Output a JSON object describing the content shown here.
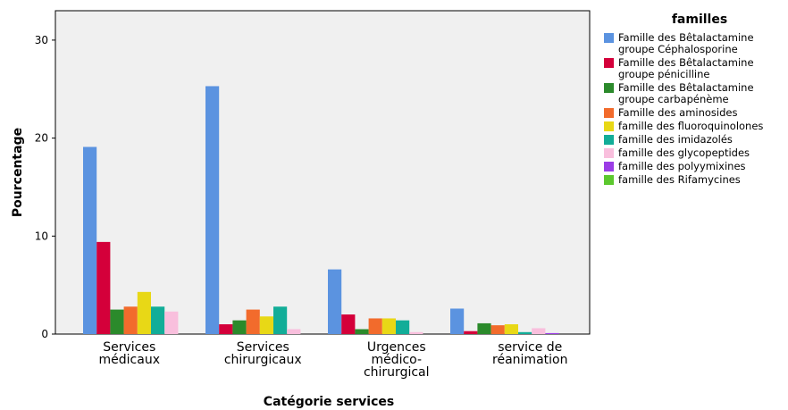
{
  "chart_data": {
    "type": "bar",
    "title": "",
    "xlabel": "Catégorie services",
    "ylabel": "Pourcentage",
    "ylim": [
      0,
      33
    ],
    "yticks": [
      0,
      10,
      20,
      30
    ],
    "grid": false,
    "legend_position": "right",
    "legend_title": "familles",
    "categories": [
      [
        "Services",
        "médicaux"
      ],
      [
        "Services",
        "chirurgicaux"
      ],
      [
        "Urgences",
        "médico-",
        "chirurgical"
      ],
      [
        "service de",
        "réanimation"
      ]
    ],
    "series": [
      {
        "name": "Famille des Bêtalactamine groupe Céphalosporine",
        "color": "#5b93e0",
        "values": [
          19.1,
          25.3,
          6.6,
          2.6
        ]
      },
      {
        "name": "Famille des Bêtalactamine groupe pénicilline",
        "color": "#d4003a",
        "values": [
          9.4,
          1.0,
          2.0,
          0.3
        ]
      },
      {
        "name": "Famille des Bêtalactamine groupe carbapénème",
        "color": "#2b8a2b",
        "values": [
          2.5,
          1.4,
          0.5,
          1.1
        ]
      },
      {
        "name": "Famille des aminosides",
        "color": "#f26b2c",
        "values": [
          2.8,
          2.5,
          1.6,
          0.9
        ]
      },
      {
        "name": "famille des fluoroquinolones",
        "color": "#e8d816",
        "values": [
          4.3,
          1.8,
          1.6,
          1.0
        ]
      },
      {
        "name": "famille des imidazolés",
        "color": "#12ad98",
        "values": [
          2.8,
          2.8,
          1.4,
          0.2
        ]
      },
      {
        "name": "famille des glycopeptides",
        "color": "#f9bfdd",
        "values": [
          2.3,
          0.5,
          0.2,
          0.6
        ]
      },
      {
        "name": "famille des polyymixines",
        "color": "#9b3ce6",
        "values": [
          0.0,
          0.0,
          0.0,
          0.1
        ]
      },
      {
        "name": "famille des Rifamycines",
        "color": "#5cc82e",
        "values": [
          0.0,
          0.0,
          0.0,
          0.0
        ]
      }
    ]
  },
  "legend": {
    "items": [
      [
        "Famille des Bêtalactamine",
        "groupe Céphalosporine"
      ],
      [
        "Famille des Bêtalactamine",
        "groupe pénicilline"
      ],
      [
        "Famille des Bêtalactamine",
        "groupe carbapénème"
      ],
      [
        "Famille des aminosides"
      ],
      [
        "famille des fluoroquinolones"
      ],
      [
        "famille des imidazolés"
      ],
      [
        "famille des glycopeptides"
      ],
      [
        "famille des polyymixines"
      ],
      [
        "famille des Rifamycines"
      ]
    ]
  }
}
